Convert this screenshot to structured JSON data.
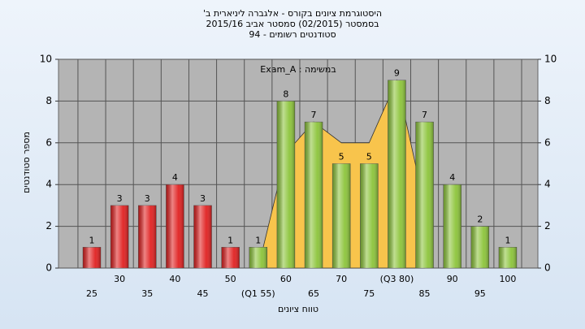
{
  "chart_data": {
    "type": "bar",
    "title": [
      "היסטוגרמת ציונים בקורס - אלגברה ליניארית ב'",
      "בסמסטר (02/2015) סמסטר אביב 2015/16",
      "סטודנטים רשומים - 94"
    ],
    "annotation": "במשימה : Exam_A",
    "x_label": "טווח ציונים",
    "y_label": "מספר סטודנטים",
    "categories": [
      "25",
      "30",
      "35",
      "40",
      "45",
      "50",
      "(Q1 55)",
      "60",
      "65",
      "70",
      "75",
      "(Q3 80)",
      "85",
      "90",
      "95",
      "100"
    ],
    "values": [
      1,
      3,
      3,
      4,
      3,
      1,
      1,
      8,
      7,
      5,
      5,
      9,
      7,
      4,
      2,
      1
    ],
    "colors": [
      "#e02020",
      "#e02020",
      "#e02020",
      "#e02020",
      "#e02020",
      "#e02020",
      "#8cc43a",
      "#8cc43a",
      "#8cc43a",
      "#8cc43a",
      "#8cc43a",
      "#8cc43a",
      "#8cc43a",
      "#8cc43a",
      "#8cc43a",
      "#8cc43a"
    ],
    "area": {
      "color": "#f8c44c",
      "values": [
        null,
        null,
        null,
        null,
        null,
        null,
        0,
        5.5,
        7,
        6,
        6,
        9,
        3,
        null,
        null,
        null
      ]
    },
    "ylim": [
      0,
      10
    ],
    "yticks": [
      0,
      2,
      4,
      6,
      8,
      10
    ],
    "y2lim": [
      0,
      10
    ],
    "y2ticks": [
      0,
      2,
      4,
      6,
      8,
      10
    ],
    "grid": true
  }
}
